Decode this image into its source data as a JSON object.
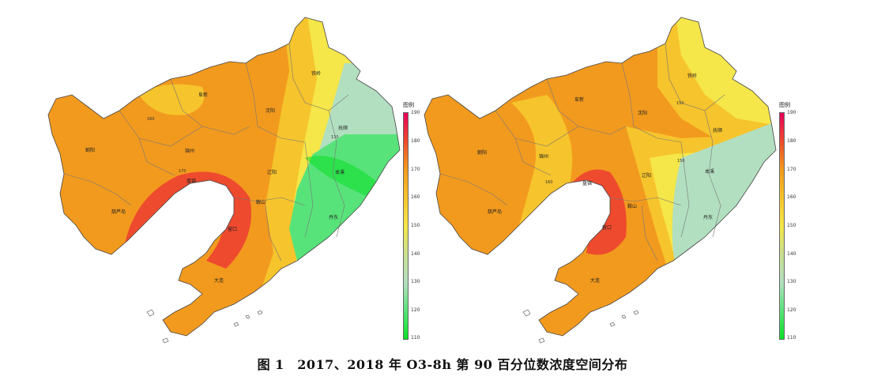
{
  "caption": "图 1　2017、2018 年 O3-8h 第 90 百分位数浓度空间分布",
  "legend": {
    "title": "图例",
    "ticks": [
      "190",
      "180",
      "170",
      "160",
      "150",
      "140",
      "130",
      "120",
      "110"
    ],
    "gradient_colors": [
      "#e8005a",
      "#ee4a2e",
      "#f29a1e",
      "#f6c42c",
      "#f5e649",
      "#c9e08e",
      "#b2dfc0",
      "#58e37a",
      "#0ae024"
    ]
  },
  "maps": [
    {
      "year": "2017",
      "cities": [
        {
          "name": "铁岭"
        },
        {
          "name": "阜新"
        },
        {
          "name": "沈阳"
        },
        {
          "name": "抚顺"
        },
        {
          "name": "朝阳"
        },
        {
          "name": "锦州"
        },
        {
          "name": "本溪"
        },
        {
          "name": "辽阳"
        },
        {
          "name": "盘锦"
        },
        {
          "name": "鞍山"
        },
        {
          "name": "葫芦岛"
        },
        {
          "name": "营口"
        },
        {
          "name": "丹东"
        },
        {
          "name": "大连"
        }
      ],
      "isolines": [
        "160",
        "170",
        "130"
      ]
    },
    {
      "year": "2018",
      "cities": [
        {
          "name": "铁岭"
        },
        {
          "name": "阜新"
        },
        {
          "name": "沈阳"
        },
        {
          "name": "抚顺"
        },
        {
          "name": "朝阳"
        },
        {
          "name": "锦州"
        },
        {
          "name": "盘锦"
        },
        {
          "name": "本溪"
        },
        {
          "name": "辽阳"
        },
        {
          "name": "鞍山"
        },
        {
          "name": "葫芦岛"
        },
        {
          "name": "营口"
        },
        {
          "name": "丹东"
        },
        {
          "name": "大连"
        }
      ],
      "isolines": [
        "150",
        "160"
      ]
    }
  ]
}
